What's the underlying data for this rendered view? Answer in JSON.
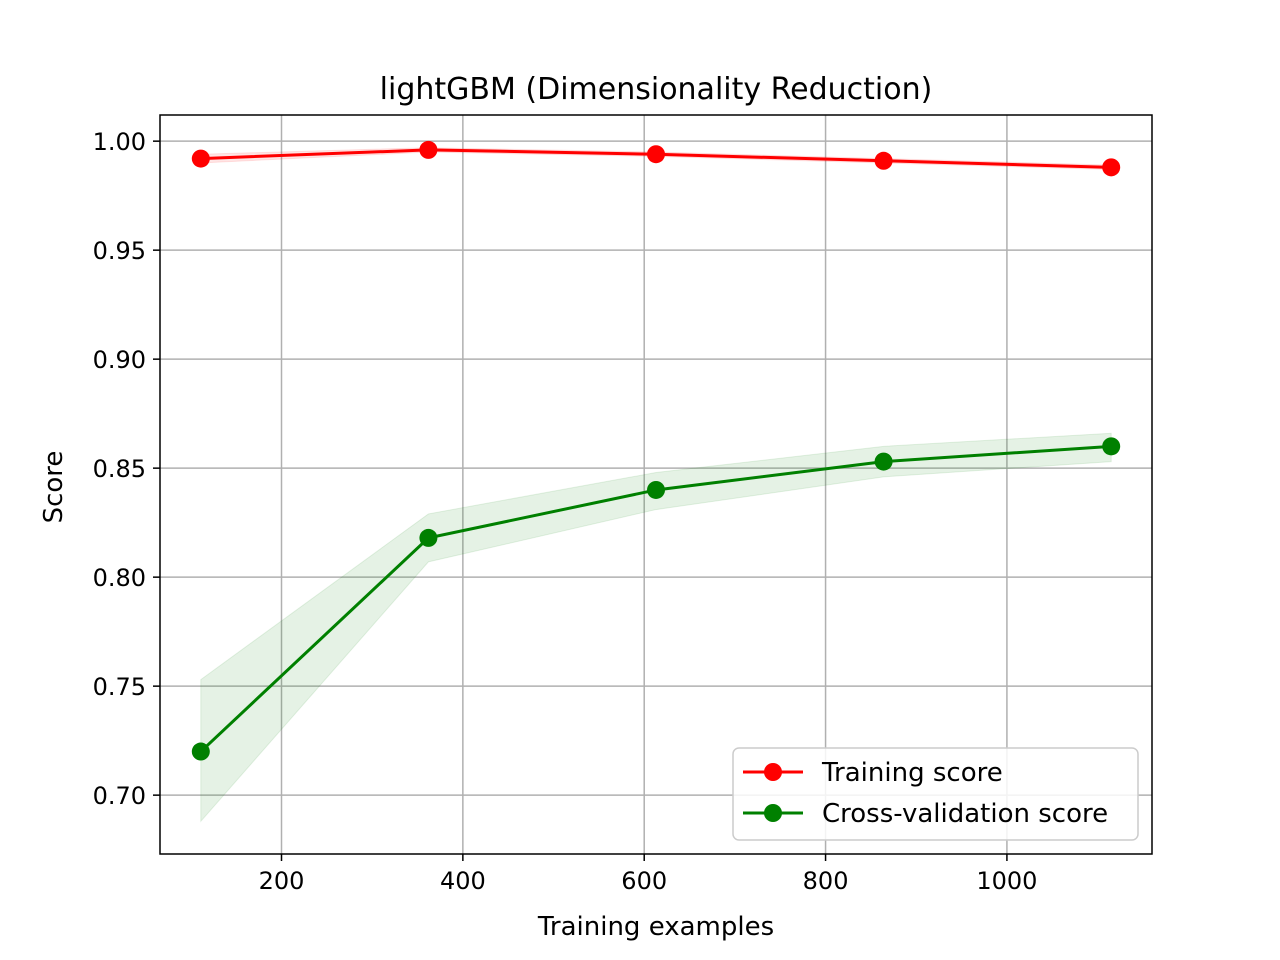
{
  "chart_data": {
    "type": "line",
    "title": "lightGBM (Dimensionality Reduction)",
    "xlabel": "Training examples",
    "ylabel": "Score",
    "xlim": [
      66,
      1160
    ],
    "ylim": [
      0.673,
      1.012
    ],
    "xticks": [
      200,
      400,
      600,
      800,
      1000
    ],
    "yticks": [
      0.7,
      0.75,
      0.8,
      0.85,
      0.9,
      0.95,
      1.0
    ],
    "grid": true,
    "legend_position": "lower right",
    "x": [
      111,
      362,
      613,
      864,
      1115
    ],
    "series": [
      {
        "name": "Training score",
        "color": "#ff0000",
        "values": [
          0.992,
          0.996,
          0.994,
          0.991,
          0.988
        ],
        "band_lower": [
          0.99,
          0.995,
          0.993,
          0.99,
          0.987
        ],
        "band_upper": [
          0.994,
          0.997,
          0.995,
          0.992,
          0.989
        ]
      },
      {
        "name": "Cross-validation score",
        "color": "#008000",
        "values": [
          0.72,
          0.818,
          0.84,
          0.853,
          0.86
        ],
        "band_lower": [
          0.688,
          0.807,
          0.831,
          0.846,
          0.853
        ],
        "band_upper": [
          0.753,
          0.829,
          0.848,
          0.86,
          0.866
        ]
      }
    ]
  }
}
